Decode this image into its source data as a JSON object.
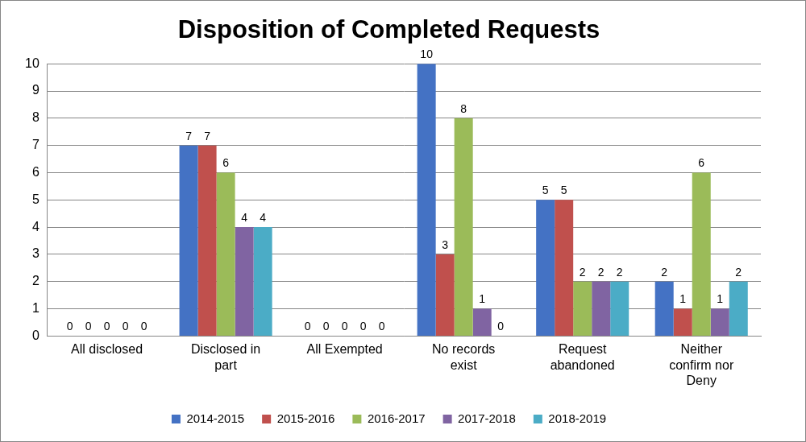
{
  "chart_data": {
    "type": "bar",
    "title": "Disposition of Completed Requests",
    "categories": [
      "All disclosed",
      "Disclosed in part",
      "All Exempted",
      "No records exist",
      "Request abandoned",
      "Neither confirm nor Deny"
    ],
    "series": [
      {
        "name": "2014-2015",
        "color": "#4472c4",
        "values": [
          0,
          7,
          0,
          10,
          5,
          2
        ]
      },
      {
        "name": "2015-2016",
        "color": "#c0504d",
        "values": [
          0,
          7,
          0,
          3,
          5,
          1
        ]
      },
      {
        "name": "2016-2017",
        "color": "#9bbb59",
        "values": [
          0,
          6,
          0,
          8,
          2,
          6
        ]
      },
      {
        "name": "2017-2018",
        "color": "#8064a2",
        "values": [
          0,
          4,
          0,
          1,
          2,
          1
        ]
      },
      {
        "name": "2018-2019",
        "color": "#4bacc6",
        "values": [
          0,
          4,
          0,
          0,
          2,
          2
        ]
      }
    ],
    "ylim": [
      0,
      10
    ],
    "yticks": [
      0,
      1,
      2,
      3,
      4,
      5,
      6,
      7,
      8,
      9,
      10
    ],
    "grid": true,
    "legend": "bottom",
    "data_labels": true
  }
}
